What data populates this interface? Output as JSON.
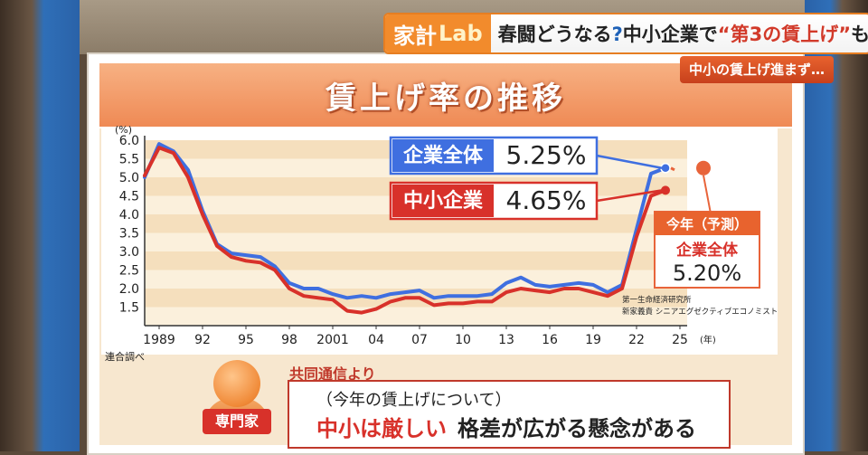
{
  "banner": {
    "logo_main": "家計",
    "logo_lab": "Lab",
    "headline_part1": "春闘どうなる",
    "headline_q": "?",
    "headline_part2": "中小企業で",
    "headline_quote": "“第3の賃上げ”",
    "headline_part3": "も"
  },
  "sub_banner": "中小の賃上げ進まず…",
  "colors": {
    "series_all": "#3f6fe0",
    "series_sme": "#d8312a",
    "forecast": "#e8643a",
    "stripe_light": "#fbf0dc",
    "stripe_dark": "#f5dfbd"
  },
  "chart_data": {
    "type": "line",
    "title": "賃上げ率の推移",
    "ylabel": "(%)",
    "xlabel": "(年)",
    "ylim": [
      1.0,
      6.0
    ],
    "xlim": [
      1988,
      2025.5
    ],
    "yticks": [
      "1.5",
      "2.0",
      "2.5",
      "3.0",
      "3.5",
      "4.0",
      "4.5",
      "5.0",
      "5.5",
      "6.0"
    ],
    "ytick_values": [
      1.5,
      2.0,
      2.5,
      3.0,
      3.5,
      4.0,
      4.5,
      5.0,
      5.5,
      6.0
    ],
    "xticks": [
      "1989",
      "92",
      "95",
      "98",
      "2001",
      "04",
      "07",
      "10",
      "13",
      "16",
      "19",
      "22",
      "25"
    ],
    "xtick_values": [
      1989,
      1992,
      1995,
      1998,
      2001,
      2004,
      2007,
      2010,
      2013,
      2016,
      2019,
      2022,
      2025
    ],
    "source_note": "連合調べ",
    "credit_line1": "第一生命経済研究所",
    "credit_line2": "新家義貴 シニアエグゼクティブエコノミスト",
    "series": [
      {
        "name": "企業全体",
        "label_value": "5.25%",
        "x": [
          1988,
          1989,
          1990,
          1991,
          1992,
          1993,
          1994,
          1995,
          1996,
          1997,
          1998,
          1999,
          2000,
          2001,
          2002,
          2003,
          2004,
          2005,
          2006,
          2007,
          2008,
          2009,
          2010,
          2011,
          2012,
          2013,
          2014,
          2015,
          2016,
          2017,
          2018,
          2019,
          2020,
          2021,
          2022,
          2023,
          2024
        ],
        "values": [
          5.0,
          5.9,
          5.7,
          5.2,
          4.1,
          3.2,
          2.95,
          2.9,
          2.85,
          2.6,
          2.15,
          2.0,
          2.0,
          1.85,
          1.75,
          1.8,
          1.75,
          1.85,
          1.9,
          1.95,
          1.75,
          1.8,
          1.8,
          1.8,
          1.85,
          2.15,
          2.3,
          2.1,
          2.05,
          2.1,
          2.15,
          2.1,
          1.9,
          2.1,
          3.6,
          5.1,
          5.25
        ]
      },
      {
        "name": "中小企業",
        "label_value": "4.65%",
        "x": [
          1988,
          1989,
          1990,
          1991,
          1992,
          1993,
          1994,
          1995,
          1996,
          1997,
          1998,
          1999,
          2000,
          2001,
          2002,
          2003,
          2004,
          2005,
          2006,
          2007,
          2008,
          2009,
          2010,
          2011,
          2012,
          2013,
          2014,
          2015,
          2016,
          2017,
          2018,
          2019,
          2020,
          2021,
          2022,
          2023,
          2024
        ],
        "values": [
          5.05,
          5.8,
          5.65,
          5.0,
          4.0,
          3.15,
          2.85,
          2.75,
          2.7,
          2.5,
          2.0,
          1.8,
          1.75,
          1.7,
          1.4,
          1.35,
          1.45,
          1.65,
          1.75,
          1.75,
          1.55,
          1.6,
          1.6,
          1.65,
          1.65,
          1.9,
          2.0,
          1.95,
          1.9,
          2.0,
          2.0,
          1.9,
          1.8,
          2.0,
          3.4,
          4.5,
          4.65
        ]
      }
    ],
    "forecast": {
      "heading": "今年（予測）",
      "series_name": "企業全体",
      "label_value": "5.20%",
      "x": [
        2025
      ],
      "values": [
        5.2
      ]
    }
  },
  "bottom": {
    "source": "共同通信より",
    "expert_label": "専門家",
    "line1": "（今年の賃上げについて）",
    "line2_highlight": "中小は厳しい",
    "line2_rest": "格差が広がる懸念がある"
  }
}
